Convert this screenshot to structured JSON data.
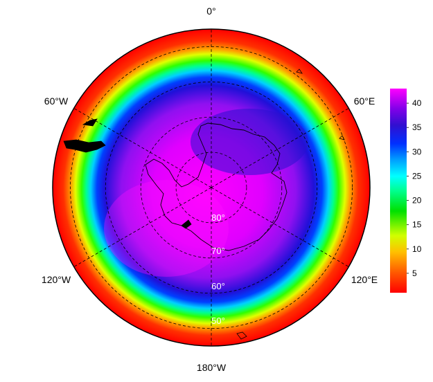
{
  "map": {
    "projection": "south-polar-stereographic",
    "boundary_latitude": 45,
    "longitude_labels": [
      "0°",
      "60°E",
      "120°E",
      "180°W",
      "120°W",
      "60°W"
    ],
    "latitude_labels": [
      "50°",
      "60°",
      "70°",
      "80°"
    ],
    "graticule_lat_rings": [
      50,
      60,
      70,
      80
    ]
  },
  "colorbar": {
    "ticks": [
      "5",
      "10",
      "15",
      "20",
      "25",
      "30",
      "35",
      "40"
    ],
    "min": 1,
    "max": 43,
    "colors": [
      "#ff0000",
      "#ff5a00",
      "#ffb000",
      "#ffe000",
      "#b0ff00",
      "#00e000",
      "#00ff90",
      "#00ffff",
      "#00a0ff",
      "#0030ff",
      "#3010d0",
      "#8000e8",
      "#ff00ff"
    ]
  },
  "field_profile": {
    "colatitude_deg": [
      0,
      10,
      20,
      25,
      30,
      32,
      34,
      36,
      38,
      40,
      42,
      45
    ],
    "values": [
      42,
      40,
      39,
      37,
      30,
      24,
      17,
      11,
      6,
      3,
      2,
      1
    ]
  }
}
